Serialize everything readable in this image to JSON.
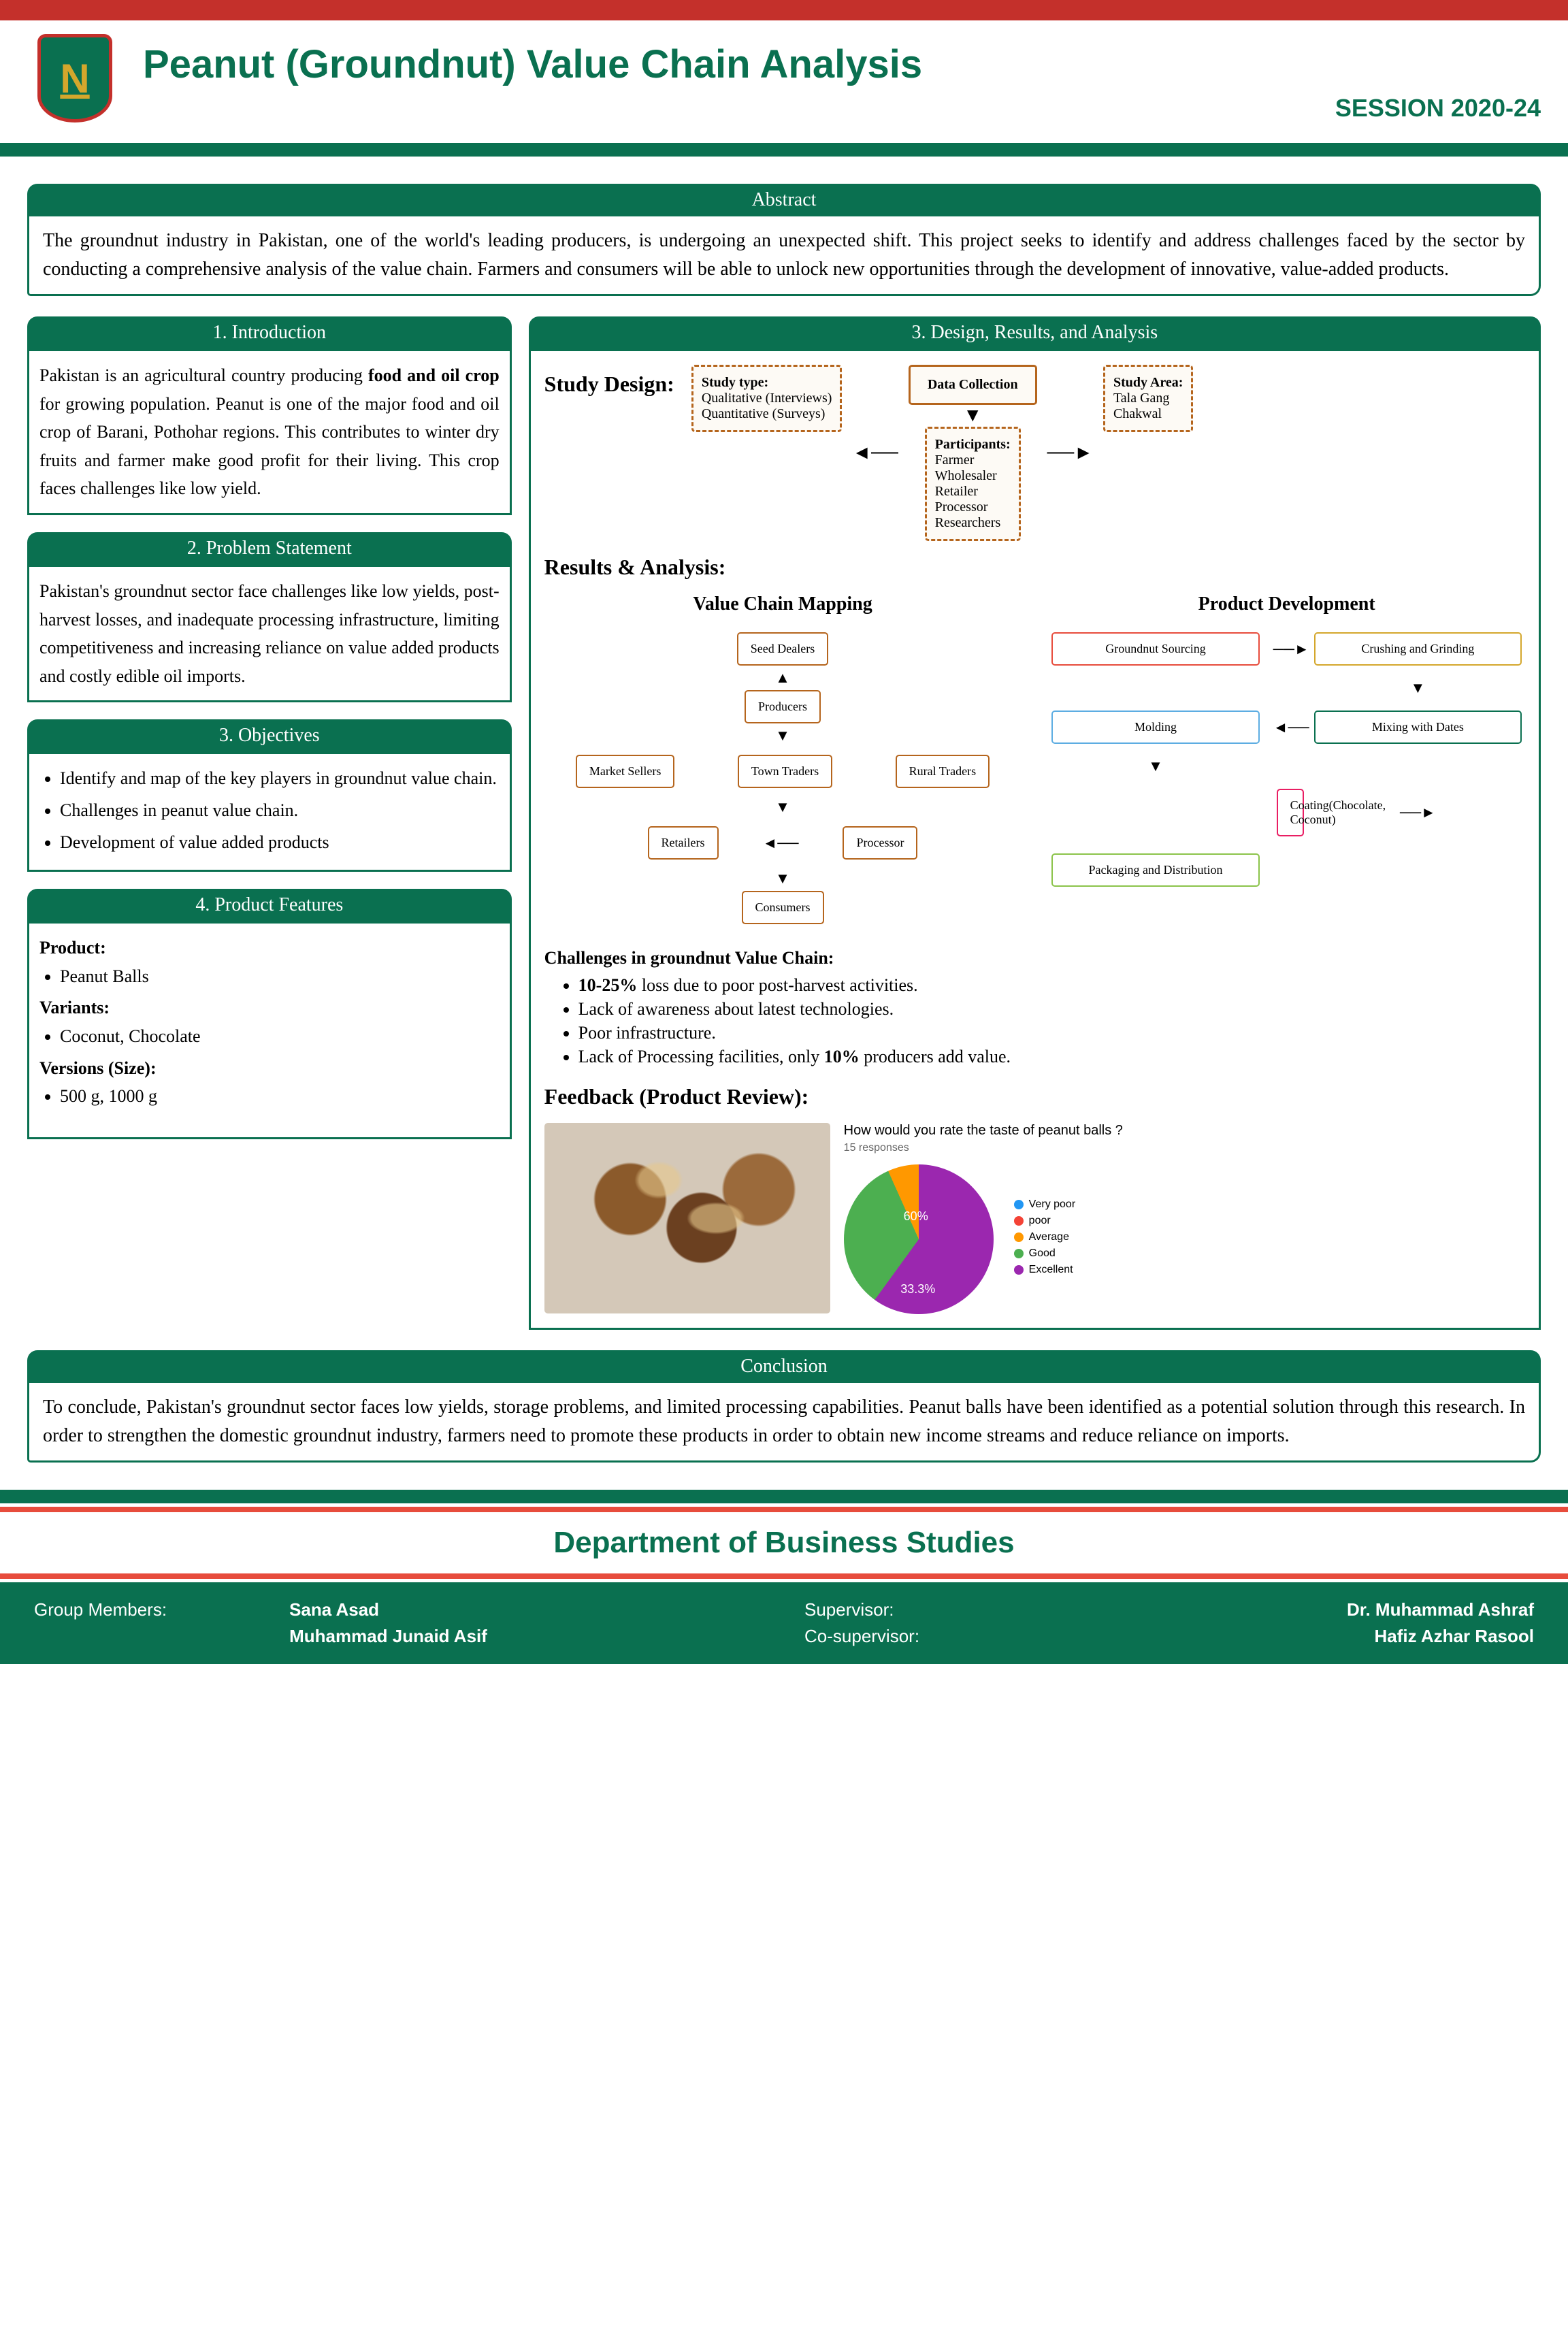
{
  "header": {
    "logo_letter": "N",
    "title": "Peanut (Groundnut) Value Chain Analysis",
    "session": "SESSION 2020-24"
  },
  "abstract": {
    "heading": "Abstract",
    "text": "The groundnut industry in Pakistan, one of the world's leading producers, is undergoing an unexpected shift. This project seeks to identify and address challenges faced by the sector by conducting a comprehensive analysis of the value chain. Farmers and consumers will be able to unlock new opportunities through the development of innovative, value-added products."
  },
  "introduction": {
    "heading": "1. Introduction",
    "text_parts": [
      "Pakistan is an agricultural country producing ",
      "food and oil crop",
      " for growing population. Peanut is one of the major food and oil crop of Barani, Pothohar regions. This contributes to winter dry fruits and farmer make good profit for their living. This crop faces challenges like low yield."
    ]
  },
  "problem": {
    "heading": "2. Problem Statement",
    "text": "Pakistan's groundnut sector face challenges like low yields, post-harvest losses, and inadequate processing infrastructure, limiting competitiveness and increasing reliance on value added products and costly edible oil imports."
  },
  "objectives": {
    "heading": "3. Objectives",
    "items": [
      "Identify and map of the key players in groundnut value chain.",
      "Challenges in peanut value chain.",
      "Development of value added products"
    ]
  },
  "features": {
    "heading": "4. Product Features",
    "product_label": "Product:",
    "product": "Peanut Balls",
    "variants_label": "Variants:",
    "variants": "Coconut, Chocolate",
    "versions_label": "Versions (Size):",
    "versions": "500 g, 1000 g"
  },
  "design": {
    "heading": "3. Design, Results, and Analysis",
    "study_design_label": "Study Design:",
    "study_type": {
      "label": "Study type:",
      "items": [
        "Qualitative (Interviews)",
        "Quantitative (Surveys)"
      ]
    },
    "data_collection": "Data Collection",
    "study_area": {
      "label": "Study Area:",
      "items": [
        "Tala Gang",
        "Chakwal"
      ]
    },
    "participants": {
      "label": "Participants:",
      "items": [
        "Farmer",
        "Wholesaler",
        "Retailer",
        "Processor",
        "Researchers"
      ]
    },
    "results_label": "Results & Analysis:",
    "value_chain": {
      "title": "Value Chain Mapping",
      "nodes": [
        "Seed Dealers",
        "Producers",
        "Market Sellers",
        "Town Traders",
        "Rural Traders",
        "Retailers",
        "Processor",
        "Consumers"
      ],
      "box_color": "#b5651d"
    },
    "product_dev": {
      "title": "Product Development",
      "nodes": [
        {
          "label": "Groundnut Sourcing",
          "color": "#e74c3c"
        },
        {
          "label": "Crushing and Grinding",
          "color": "#d4a72c"
        },
        {
          "label": "Molding",
          "color": "#5dade2"
        },
        {
          "label": "Mixing with Dates",
          "color": "#0a7050"
        },
        {
          "label": "Coating(Chocolate, Coconut)",
          "color": "#e91e63"
        },
        {
          "label": "Packaging and Distribution",
          "color": "#8bc34a"
        }
      ]
    },
    "challenges": {
      "title": "Challenges in groundnut Value Chain:",
      "items": [
        {
          "pre": "",
          "bold": "10-25%",
          "post": " loss due to poor post-harvest activities."
        },
        {
          "pre": "Lack of awareness about latest technologies.",
          "bold": "",
          "post": ""
        },
        {
          "pre": "Poor infrastructure.",
          "bold": "",
          "post": ""
        },
        {
          "pre": "Lack of Processing facilities, only ",
          "bold": "10%",
          "post": " producers add value."
        }
      ]
    },
    "feedback": {
      "title": "Feedback (Product Review):",
      "chart_title": "How would you rate the taste of peanut balls ?",
      "responses": "15 responses",
      "slices": [
        {
          "label": "Excellent",
          "value": 60,
          "color": "#9b27af",
          "text": "60%"
        },
        {
          "label": "Good",
          "value": 33.3,
          "color": "#4caf50",
          "text": "33.3%"
        },
        {
          "label": "Average",
          "value": 6.7,
          "color": "#ff9800",
          "text": ""
        }
      ],
      "legend": [
        {
          "label": "Very poor",
          "color": "#2196f3"
        },
        {
          "label": "poor",
          "color": "#f44336"
        },
        {
          "label": "Average",
          "color": "#ff9800"
        },
        {
          "label": "Good",
          "color": "#4caf50"
        },
        {
          "label": "Excellent",
          "color": "#9b27af"
        }
      ]
    }
  },
  "conclusion": {
    "heading": "Conclusion",
    "text": "To conclude, Pakistan's groundnut sector faces low yields, storage problems, and limited processing capabilities. Peanut balls have been identified as a potential solution through this research. In order to strengthen the domestic groundnut industry, farmers need to promote these products in order to obtain new income streams and reduce reliance on imports."
  },
  "footer": {
    "department": "Department of Business Studies",
    "members_label": "Group Members:",
    "members": [
      "Sana Asad",
      "Muhammad Junaid Asif"
    ],
    "supervisor_label": "Supervisor:",
    "supervisor": "Dr. Muhammad Ashraf",
    "cosupervisor_label": "Co-supervisor:",
    "cosupervisor": "Hafiz Azhar Rasool"
  },
  "colors": {
    "teal": "#0a7050",
    "red": "#c4302b",
    "gold": "#d4a72c"
  }
}
